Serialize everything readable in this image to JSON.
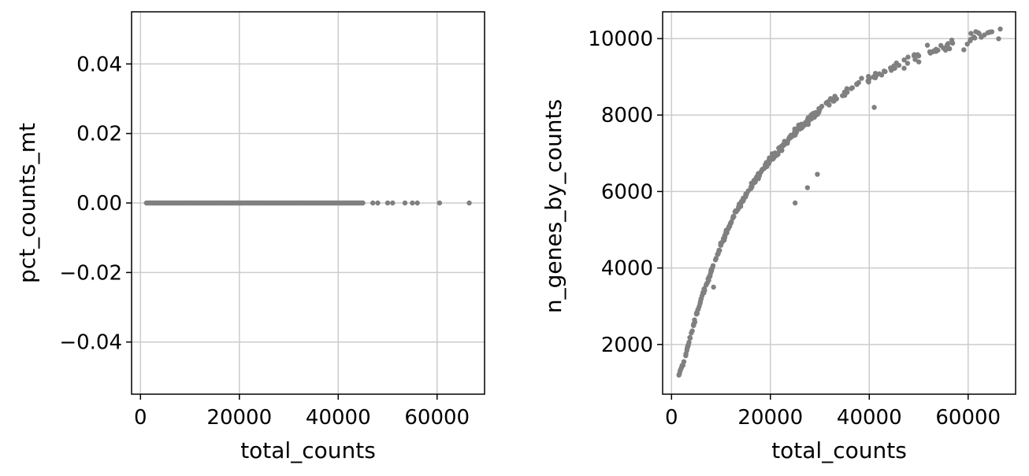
{
  "chart_data": [
    {
      "type": "scatter",
      "xlabel": "total_counts",
      "ylabel": "pct_counts_mt",
      "xlim": [
        -1800,
        69600
      ],
      "ylim": [
        -0.055,
        0.055
      ],
      "xticks": [
        0,
        20000,
        40000,
        60000
      ],
      "yticks": [
        -0.04,
        -0.02,
        0.0,
        0.02,
        0.04
      ],
      "xtick_labels": [
        "0",
        "20000",
        "40000",
        "60000"
      ],
      "ytick_labels": [
        "−0.04",
        "−0.02",
        "0.00",
        "0.02",
        "0.04"
      ],
      "grid": true,
      "point_color": "#808080",
      "series": [
        {
          "x_range_dense": [
            1200,
            45000
          ],
          "x_sparse": [
            47000,
            48000,
            50000,
            51000,
            53500,
            55000,
            56000,
            60500,
            66500
          ],
          "y_constant": 0.0
        }
      ]
    },
    {
      "type": "scatter",
      "xlabel": "total_counts",
      "ylabel": "n_genes_by_counts",
      "xlim": [
        -1800,
        69600
      ],
      "ylim": [
        700,
        10700
      ],
      "xticks": [
        0,
        20000,
        40000,
        60000
      ],
      "yticks": [
        2000,
        4000,
        6000,
        8000,
        10000
      ],
      "xtick_labels": [
        "0",
        "20000",
        "40000",
        "60000"
      ],
      "ytick_labels": [
        "2000",
        "4000",
        "6000",
        "8000",
        "10000"
      ],
      "grid": true,
      "point_color": "#808080",
      "trend_points": [
        {
          "x": 1500,
          "y": 1200
        },
        {
          "x": 2500,
          "y": 1550
        },
        {
          "x": 4000,
          "y": 2300
        },
        {
          "x": 6000,
          "y": 3200
        },
        {
          "x": 8000,
          "y": 3900
        },
        {
          "x": 10000,
          "y": 4600
        },
        {
          "x": 12500,
          "y": 5350
        },
        {
          "x": 15000,
          "y": 5900
        },
        {
          "x": 17500,
          "y": 6400
        },
        {
          "x": 20000,
          "y": 6850
        },
        {
          "x": 22500,
          "y": 7200
        },
        {
          "x": 25000,
          "y": 7550
        },
        {
          "x": 27500,
          "y": 7850
        },
        {
          "x": 30000,
          "y": 8150
        },
        {
          "x": 32500,
          "y": 8400
        },
        {
          "x": 35000,
          "y": 8600
        },
        {
          "x": 37500,
          "y": 8800
        },
        {
          "x": 40000,
          "y": 8950
        },
        {
          "x": 43000,
          "y": 9150
        },
        {
          "x": 46000,
          "y": 9300
        },
        {
          "x": 50000,
          "y": 9550
        },
        {
          "x": 55000,
          "y": 9750
        },
        {
          "x": 60500,
          "y": 9980
        },
        {
          "x": 66500,
          "y": 10250
        }
      ],
      "outliers": [
        {
          "x": 25000,
          "y": 5700
        },
        {
          "x": 29500,
          "y": 6450
        },
        {
          "x": 27500,
          "y": 6100
        },
        {
          "x": 8500,
          "y": 3500
        },
        {
          "x": 41000,
          "y": 8200
        }
      ]
    }
  ]
}
